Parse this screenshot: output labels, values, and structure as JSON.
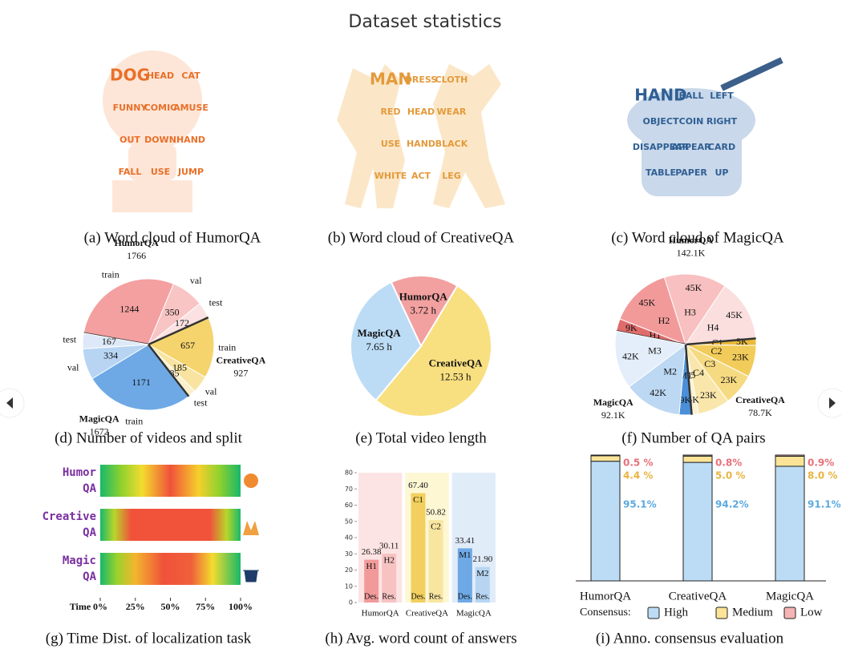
{
  "header": {
    "title": "Dataset statistics"
  },
  "word_clouds": [
    {
      "caption": "(a) Word cloud of HumorQA",
      "words": [
        "DOG",
        "HEAD",
        "CAT",
        "FUNNY",
        "COMIC",
        "AMUSE",
        "OUT",
        "DOWN",
        "HAND",
        "FALL",
        "USE",
        "JUMP"
      ]
    },
    {
      "caption": "(b) Word cloud of CreativeQA",
      "words": [
        "MAN",
        "DRESS",
        "CLOTH",
        "RED",
        "HEAD",
        "WEAR",
        "USE",
        "HAND",
        "BLACK",
        "WHITE",
        "ACT",
        "LEG"
      ]
    },
    {
      "caption": "(c) Word cloud of MagicQA",
      "words": [
        "HAND",
        "BALL",
        "LEFT",
        "OBJECT",
        "COIN",
        "RIGHT",
        "DISAPPEAR",
        "APPEAR",
        "CARD",
        "TABLE",
        "PAPER",
        "UP"
      ]
    }
  ],
  "chart_data": [
    {
      "type": "pie",
      "caption": "(d) Number of videos and split",
      "series": [
        {
          "name": "HumorQA",
          "total": 1766,
          "categories": [
            "train",
            "val",
            "test"
          ],
          "values": [
            1244,
            350,
            172
          ],
          "colors": [
            "#f4a0a0",
            "#f8c4c4",
            "#fbe1e1"
          ]
        },
        {
          "name": "CreativeQA",
          "total": 927,
          "categories": [
            "train",
            "val",
            "test"
          ],
          "values": [
            657,
            185,
            85
          ],
          "colors": [
            "#f5d46e",
            "#f8e4a0",
            "#fbf0cc"
          ]
        },
        {
          "name": "MagicQA",
          "total": 1672,
          "categories": [
            "train",
            "val",
            "test"
          ],
          "values": [
            1171,
            334,
            167
          ],
          "colors": [
            "#6ea9e6",
            "#b7d5f3",
            "#dde9f8"
          ]
        }
      ]
    },
    {
      "type": "pie",
      "caption": "(e) Total video length",
      "categories": [
        "HumorQA",
        "CreativeQA",
        "MagicQA"
      ],
      "values": [
        3.72,
        12.53,
        7.65
      ],
      "value_labels": [
        "3.72 h",
        "12.53 h",
        "7.65 h"
      ],
      "colors": [
        "#f2a0a0",
        "#f8df80",
        "#bcdcf6"
      ]
    },
    {
      "type": "pie",
      "caption": "(f) Number of QA pairs",
      "series": [
        {
          "name": "HumorQA",
          "total": 142100,
          "total_label": "142.1K",
          "categories": [
            "H1",
            "H2",
            "H3",
            "H4"
          ],
          "values": [
            9000,
            45000,
            45000,
            45000
          ],
          "value_labels": [
            "9K",
            "45K",
            "45K",
            "45K"
          ],
          "colors": [
            "#e06b6b",
            "#f29a9a",
            "#f8c0c0",
            "#fbdede"
          ]
        },
        {
          "name": "CreativeQA",
          "total": 78700,
          "total_label": "78.7K",
          "categories": [
            "C1",
            "C2",
            "C3",
            "C4",
            "C5"
          ],
          "values": [
            5000,
            23000,
            23000,
            23000,
            5000
          ],
          "value_labels": [
            "5K",
            "23K",
            "23K",
            "23K",
            "5K"
          ],
          "colors": [
            "#e9b93a",
            "#f2cc5a",
            "#f6da82",
            "#f9e6aa",
            "#fcf2d2"
          ]
        },
        {
          "name": "MagicQA",
          "total": 92100,
          "total_label": "92.1K",
          "categories": [
            "M1",
            "M2",
            "M3"
          ],
          "values": [
            9000,
            42000,
            42000
          ],
          "value_labels": [
            "9K",
            "42K",
            "42K"
          ],
          "colors": [
            "#4a8fd8",
            "#bcd8f3",
            "#e4eefa"
          ]
        }
      ]
    },
    {
      "type": "heatmap",
      "caption": "(g) Time Dist. of localization task",
      "categories": [
        [
          "Humor",
          "QA"
        ],
        [
          "Creative",
          "QA"
        ],
        [
          "Magic",
          "QA"
        ]
      ],
      "xlabel": "Time",
      "xlim": [
        0,
        100
      ],
      "xticks": [
        {
          "value": 0,
          "label": "0%"
        },
        {
          "value": 25,
          "label": "25%"
        },
        {
          "value": 50,
          "label": "50%"
        },
        {
          "value": 75,
          "label": "75%"
        },
        {
          "value": 100,
          "label": "100%"
        }
      ]
    },
    {
      "type": "bar",
      "caption": "(h) Avg. word count of answers",
      "ylim": [
        0,
        80
      ],
      "yticks": [
        0,
        10,
        20,
        30,
        40,
        50,
        60,
        70,
        80
      ],
      "groups": [
        {
          "name": "HumorQA",
          "bars": [
            "H1",
            "H2"
          ],
          "sublabels": [
            "Des.",
            "Res."
          ],
          "values": [
            26.38,
            30.11
          ],
          "value_labels": [
            "26.38",
            "30.11"
          ],
          "colors": [
            "#f29a9a",
            "#f7c2c2"
          ],
          "band_color": "#fce4e4"
        },
        {
          "name": "CreativeQA",
          "bars": [
            "C1",
            "C2"
          ],
          "sublabels": [
            "Des.",
            "Res."
          ],
          "values": [
            67.4,
            50.82
          ],
          "value_labels": [
            "67.40",
            "50.82"
          ],
          "colors": [
            "#f2cf5e",
            "#f8e6a0"
          ],
          "band_color": "#fdf7d4"
        },
        {
          "name": "MagicQA",
          "bars": [
            "M1",
            "M2"
          ],
          "sublabels": [
            "Des.",
            "Res."
          ],
          "values": [
            33.41,
            21.9
          ],
          "value_labels": [
            "33.41",
            "21.90"
          ],
          "colors": [
            "#6ea9e6",
            "#b7d5f3"
          ],
          "band_color": "#e1ecf9"
        }
      ]
    },
    {
      "type": "stacked_bar",
      "caption": "(i) Anno. consensus evaluation",
      "categories": [
        "HumorQA",
        "CreativeQA",
        "MagicQA"
      ],
      "ylim": [
        0,
        100
      ],
      "legend_title": "Consensus:",
      "series": [
        {
          "name": "High",
          "color": "#bcdcf6",
          "text_color": "#5aa9e0",
          "values": [
            95.1,
            94.2,
            91.1
          ],
          "value_labels": [
            "95.1%",
            "94.2%",
            "91.1%"
          ]
        },
        {
          "name": "Medium",
          "color": "#fbe497",
          "text_color": "#e9b440",
          "values": [
            4.4,
            5.0,
            8.0
          ],
          "value_labels": [
            "4.4 %",
            "5.0 %",
            "8.0 %"
          ]
        },
        {
          "name": "Low",
          "color": "#f6b4b4",
          "text_color": "#e8707a",
          "values": [
            0.5,
            0.8,
            0.9
          ],
          "value_labels": [
            "0.5 %",
            "0.8%",
            "0.9%"
          ]
        }
      ]
    }
  ]
}
